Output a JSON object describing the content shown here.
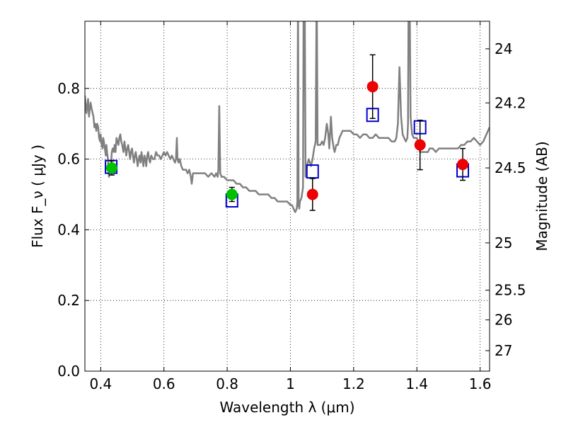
{
  "chart_data": {
    "type": "scatter",
    "xlabel": "Wavelength  λ (μm)",
    "ylabel": "Flux  F_ν  ( μJy )",
    "y2label": "Magnitude (AB)",
    "xlim": [
      0.35,
      1.63
    ],
    "ylim": [
      0.0,
      0.99
    ],
    "grid": true,
    "x_ticks": [
      0.4,
      0.6,
      0.8,
      1.0,
      1.2,
      1.4,
      1.6
    ],
    "x_tick_labels": [
      "0.4",
      "0.6",
      "0.8",
      "1",
      "1.2",
      "1.4",
      "1.6"
    ],
    "y_ticks": [
      0.0,
      0.2,
      0.4,
      0.6,
      0.8
    ],
    "y_tick_labels": [
      "0.0",
      "0.2",
      "0.4",
      "0.6",
      "0.8"
    ],
    "y2_ticks": [
      {
        "label": "24",
        "flux": 0.912
      },
      {
        "label": "24.2",
        "flux": 0.759
      },
      {
        "label": "24.5",
        "flux": 0.575
      },
      {
        "label": "25",
        "flux": 0.363
      },
      {
        "label": "25.5",
        "flux": 0.229
      },
      {
        "label": "26",
        "flux": 0.145
      },
      {
        "label": "27",
        "flux": 0.058
      }
    ],
    "series": [
      {
        "kind": "line",
        "color": "#808080",
        "points": [
          [
            0.35,
            0.78
          ],
          [
            0.355,
            0.73
          ],
          [
            0.36,
            0.77
          ],
          [
            0.363,
            0.72
          ],
          [
            0.368,
            0.76
          ],
          [
            0.372,
            0.74
          ],
          [
            0.377,
            0.72
          ],
          [
            0.38,
            0.69
          ],
          [
            0.383,
            0.7
          ],
          [
            0.386,
            0.68
          ],
          [
            0.389,
            0.7
          ],
          [
            0.392,
            0.69
          ],
          [
            0.395,
            0.66
          ],
          [
            0.398,
            0.65
          ],
          [
            0.4,
            0.67
          ],
          [
            0.403,
            0.64
          ],
          [
            0.406,
            0.63
          ],
          [
            0.408,
            0.66
          ],
          [
            0.41,
            0.65
          ],
          [
            0.413,
            0.63
          ],
          [
            0.416,
            0.61
          ],
          [
            0.418,
            0.64
          ],
          [
            0.42,
            0.62
          ],
          [
            0.423,
            0.6
          ],
          [
            0.426,
            0.55
          ],
          [
            0.429,
            0.58
          ],
          [
            0.432,
            0.57
          ],
          [
            0.435,
            0.62
          ],
          [
            0.438,
            0.63
          ],
          [
            0.441,
            0.62
          ],
          [
            0.444,
            0.64
          ],
          [
            0.447,
            0.62
          ],
          [
            0.45,
            0.66
          ],
          [
            0.453,
            0.65
          ],
          [
            0.456,
            0.64
          ],
          [
            0.459,
            0.66
          ],
          [
            0.462,
            0.67
          ],
          [
            0.465,
            0.65
          ],
          [
            0.468,
            0.64
          ],
          [
            0.472,
            0.62
          ],
          [
            0.475,
            0.65
          ],
          [
            0.478,
            0.63
          ],
          [
            0.481,
            0.61
          ],
          [
            0.484,
            0.63
          ],
          [
            0.487,
            0.64
          ],
          [
            0.49,
            0.62
          ],
          [
            0.493,
            0.6
          ],
          [
            0.496,
            0.62
          ],
          [
            0.499,
            0.63
          ],
          [
            0.502,
            0.61
          ],
          [
            0.505,
            0.59
          ],
          [
            0.508,
            0.61
          ],
          [
            0.511,
            0.62
          ],
          [
            0.514,
            0.6
          ],
          [
            0.517,
            0.58
          ],
          [
            0.52,
            0.6
          ],
          [
            0.523,
            0.61
          ],
          [
            0.526,
            0.59
          ],
          [
            0.529,
            0.62
          ],
          [
            0.532,
            0.6
          ],
          [
            0.535,
            0.58
          ],
          [
            0.538,
            0.61
          ],
          [
            0.541,
            0.6
          ],
          [
            0.544,
            0.58
          ],
          [
            0.547,
            0.61
          ],
          [
            0.55,
            0.62
          ],
          [
            0.553,
            0.6
          ],
          [
            0.556,
            0.59
          ],
          [
            0.56,
            0.61
          ],
          [
            0.565,
            0.6
          ],
          [
            0.57,
            0.6
          ],
          [
            0.575,
            0.62
          ],
          [
            0.58,
            0.61
          ],
          [
            0.585,
            0.61
          ],
          [
            0.59,
            0.6
          ],
          [
            0.595,
            0.61
          ],
          [
            0.6,
            0.62
          ],
          [
            0.605,
            0.61
          ],
          [
            0.61,
            0.62
          ],
          [
            0.615,
            0.61
          ],
          [
            0.62,
            0.6
          ],
          [
            0.625,
            0.61
          ],
          [
            0.63,
            0.6
          ],
          [
            0.635,
            0.59
          ],
          [
            0.638,
            0.6
          ],
          [
            0.641,
            0.66
          ],
          [
            0.643,
            0.6
          ],
          [
            0.646,
            0.59
          ],
          [
            0.65,
            0.6
          ],
          [
            0.655,
            0.58
          ],
          [
            0.66,
            0.57
          ],
          [
            0.67,
            0.57
          ],
          [
            0.675,
            0.56
          ],
          [
            0.68,
            0.57
          ],
          [
            0.685,
            0.55
          ],
          [
            0.688,
            0.53
          ],
          [
            0.692,
            0.56
          ],
          [
            0.7,
            0.56
          ],
          [
            0.71,
            0.56
          ],
          [
            0.72,
            0.56
          ],
          [
            0.73,
            0.56
          ],
          [
            0.74,
            0.55
          ],
          [
            0.75,
            0.56
          ],
          [
            0.76,
            0.55
          ],
          [
            0.765,
            0.56
          ],
          [
            0.77,
            0.55
          ],
          [
            0.772,
            0.57
          ],
          [
            0.775,
            0.75
          ],
          [
            0.778,
            0.56
          ],
          [
            0.782,
            0.55
          ],
          [
            0.79,
            0.55
          ],
          [
            0.8,
            0.54
          ],
          [
            0.81,
            0.54
          ],
          [
            0.82,
            0.54
          ],
          [
            0.83,
            0.53
          ],
          [
            0.84,
            0.53
          ],
          [
            0.85,
            0.52
          ],
          [
            0.86,
            0.52
          ],
          [
            0.87,
            0.51
          ],
          [
            0.88,
            0.51
          ],
          [
            0.89,
            0.51
          ],
          [
            0.9,
            0.5
          ],
          [
            0.91,
            0.5
          ],
          [
            0.92,
            0.5
          ],
          [
            0.93,
            0.5
          ],
          [
            0.94,
            0.49
          ],
          [
            0.95,
            0.49
          ],
          [
            0.96,
            0.48
          ],
          [
            0.97,
            0.48
          ],
          [
            0.98,
            0.48
          ],
          [
            0.99,
            0.48
          ],
          [
            1.0,
            0.47
          ],
          [
            1.005,
            0.47
          ],
          [
            1.01,
            0.46
          ],
          [
            1.015,
            0.45
          ],
          [
            1.02,
            0.46
          ],
          [
            1.022,
            0.48
          ],
          [
            1.024,
            1.1
          ],
          [
            1.026,
            0.47
          ],
          [
            1.028,
            0.46
          ],
          [
            1.03,
            0.48
          ],
          [
            1.035,
            0.49
          ],
          [
            1.04,
            0.52
          ],
          [
            1.042,
            1.1
          ],
          [
            1.045,
            1.1
          ],
          [
            1.048,
            0.55
          ],
          [
            1.052,
            0.58
          ],
          [
            1.058,
            0.6
          ],
          [
            1.065,
            0.58
          ],
          [
            1.07,
            0.6
          ],
          [
            1.075,
            0.63
          ],
          [
            1.08,
            0.65
          ],
          [
            1.083,
            1.1
          ],
          [
            1.086,
            0.64
          ],
          [
            1.09,
            0.64
          ],
          [
            1.095,
            0.64
          ],
          [
            1.1,
            0.65
          ],
          [
            1.105,
            0.64
          ],
          [
            1.11,
            0.66
          ],
          [
            1.115,
            0.7
          ],
          [
            1.12,
            0.67
          ],
          [
            1.123,
            0.63
          ],
          [
            1.126,
            0.68
          ],
          [
            1.128,
            0.72
          ],
          [
            1.132,
            0.66
          ],
          [
            1.137,
            0.63
          ],
          [
            1.14,
            0.62
          ],
          [
            1.145,
            0.64
          ],
          [
            1.15,
            0.64
          ],
          [
            1.155,
            0.66
          ],
          [
            1.16,
            0.67
          ],
          [
            1.165,
            0.68
          ],
          [
            1.17,
            0.68
          ],
          [
            1.18,
            0.68
          ],
          [
            1.19,
            0.68
          ],
          [
            1.2,
            0.67
          ],
          [
            1.21,
            0.67
          ],
          [
            1.22,
            0.66
          ],
          [
            1.23,
            0.67
          ],
          [
            1.24,
            0.67
          ],
          [
            1.25,
            0.66
          ],
          [
            1.26,
            0.66
          ],
          [
            1.27,
            0.67
          ],
          [
            1.28,
            0.66
          ],
          [
            1.29,
            0.66
          ],
          [
            1.3,
            0.66
          ],
          [
            1.31,
            0.66
          ],
          [
            1.32,
            0.65
          ],
          [
            1.33,
            0.65
          ],
          [
            1.335,
            0.66
          ],
          [
            1.34,
            0.7
          ],
          [
            1.345,
            0.86
          ],
          [
            1.35,
            0.72
          ],
          [
            1.355,
            0.67
          ],
          [
            1.36,
            0.66
          ],
          [
            1.365,
            0.65
          ],
          [
            1.37,
            0.66
          ],
          [
            1.372,
            0.7
          ],
          [
            1.374,
            1.1
          ],
          [
            1.377,
            1.1
          ],
          [
            1.38,
            0.72
          ],
          [
            1.385,
            0.67
          ],
          [
            1.39,
            0.66
          ],
          [
            1.395,
            0.66
          ],
          [
            1.4,
            0.66
          ],
          [
            1.405,
            0.64
          ],
          [
            1.41,
            0.62
          ],
          [
            1.415,
            0.62
          ],
          [
            1.42,
            0.62
          ],
          [
            1.425,
            0.62
          ],
          [
            1.43,
            0.62
          ],
          [
            1.435,
            0.62
          ],
          [
            1.44,
            0.63
          ],
          [
            1.45,
            0.63
          ],
          [
            1.46,
            0.62
          ],
          [
            1.47,
            0.63
          ],
          [
            1.48,
            0.63
          ],
          [
            1.49,
            0.63
          ],
          [
            1.5,
            0.63
          ],
          [
            1.51,
            0.63
          ],
          [
            1.52,
            0.63
          ],
          [
            1.53,
            0.63
          ],
          [
            1.54,
            0.64
          ],
          [
            1.55,
            0.64
          ],
          [
            1.56,
            0.65
          ],
          [
            1.57,
            0.65
          ],
          [
            1.58,
            0.66
          ],
          [
            1.59,
            0.65
          ],
          [
            1.6,
            0.64
          ],
          [
            1.61,
            0.65
          ],
          [
            1.62,
            0.67
          ],
          [
            1.63,
            0.69
          ]
        ]
      },
      {
        "kind": "marker-square",
        "color": "#0000cc",
        "points": [
          {
            "x": 0.433,
            "y": 0.578
          },
          {
            "x": 0.815,
            "y": 0.483
          },
          {
            "x": 1.07,
            "y": 0.565
          },
          {
            "x": 1.26,
            "y": 0.725
          },
          {
            "x": 1.41,
            "y": 0.69
          },
          {
            "x": 1.545,
            "y": 0.568
          }
        ]
      },
      {
        "kind": "marker-circle",
        "color": "#00c000",
        "points": [
          {
            "x": 0.435,
            "y": 0.575,
            "err": 0.02
          },
          {
            "x": 0.815,
            "y": 0.5,
            "err": 0.02
          }
        ]
      },
      {
        "kind": "marker-circle",
        "color": "#ee0000",
        "points": [
          {
            "x": 1.07,
            "y": 0.5,
            "err": 0.045
          },
          {
            "x": 1.26,
            "y": 0.805,
            "err": 0.09
          },
          {
            "x": 1.41,
            "y": 0.64,
            "err": 0.07
          },
          {
            "x": 1.545,
            "y": 0.585,
            "err": 0.045
          }
        ]
      }
    ]
  }
}
